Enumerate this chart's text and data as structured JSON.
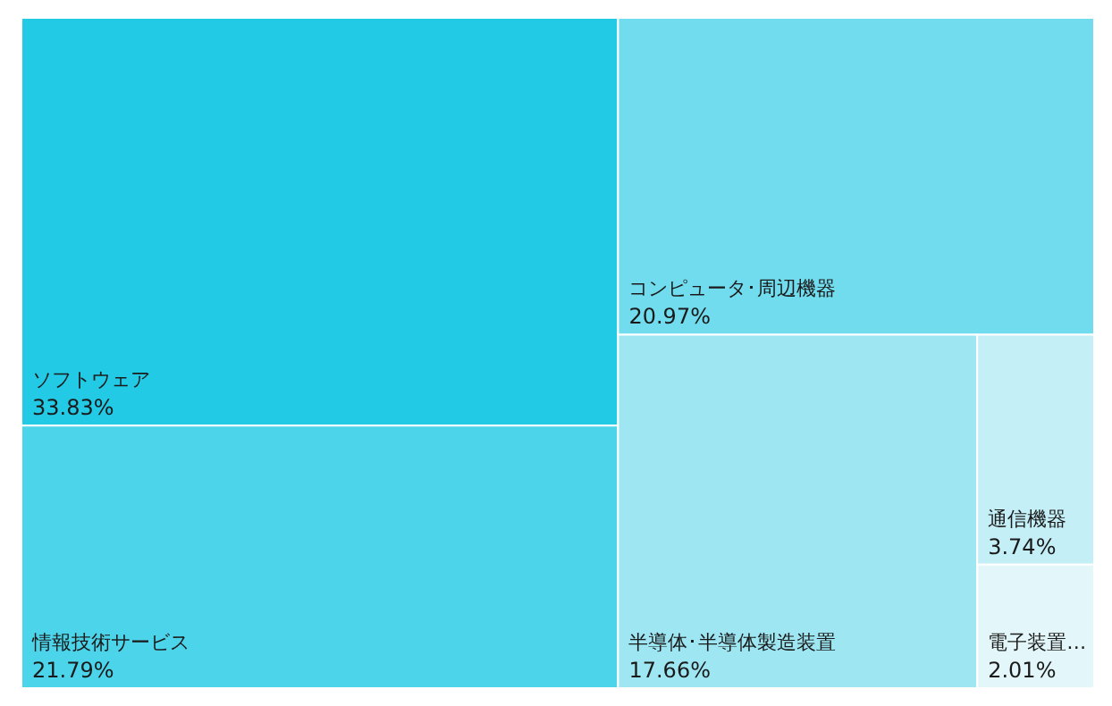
{
  "chart_data": {
    "type": "other",
    "categories": [
      "ソフトウェア",
      "情報技術サービス",
      "コンピュータ･周辺機器",
      "半導体･半導体製造装置",
      "通信機器",
      "電子装置…"
    ],
    "values": [
      33.83,
      21.79,
      20.97,
      17.66,
      3.74,
      2.01
    ],
    "value_labels": [
      "33.83%",
      "21.79%",
      "20.97%",
      "17.66%",
      "3.74%",
      "2.01%"
    ],
    "colors": [
      "#22cae6",
      "#4bd4ea",
      "#72dcef",
      "#9de6f2",
      "#c4eff7",
      "#e3f7fa"
    ]
  }
}
